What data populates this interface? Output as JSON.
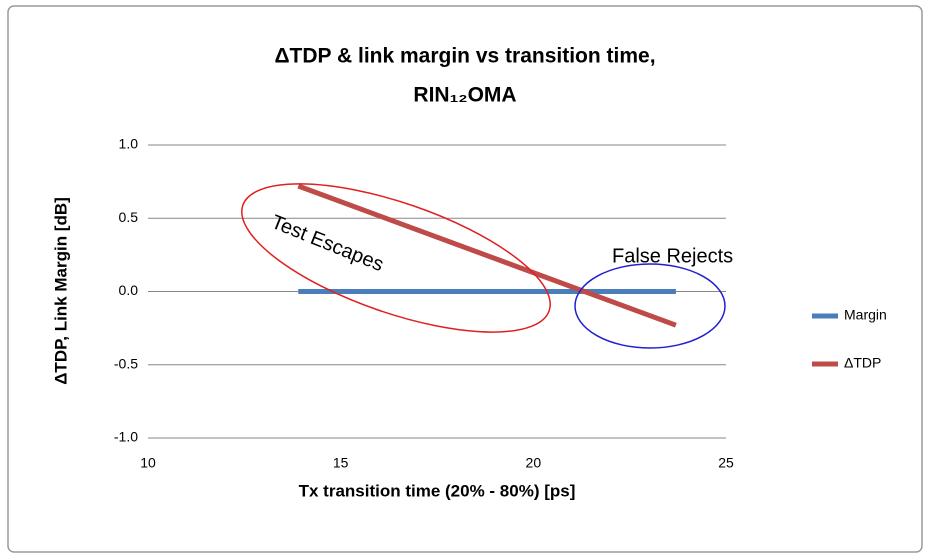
{
  "chart_data": {
    "type": "line",
    "title": [
      "ΔTDP & link margin vs transition time,",
      "RIN₁₂OMA"
    ],
    "x_label": "Tx transition time (20% - 80%) [ps]",
    "y_label": "ΔTDP, Link Margin [dB]",
    "x": [
      13.9,
      23.7
    ],
    "series": [
      {
        "name": "Margin",
        "color": "#4a7ebb",
        "values": [
          0,
          0
        ]
      },
      {
        "name": "ΔTDP",
        "color": "#be4b48",
        "values": [
          0.72,
          -0.23
        ]
      }
    ],
    "xlim": [
      10,
      25
    ],
    "xticks": [
      10,
      15,
      20,
      25
    ],
    "ylim": [
      -1,
      1
    ],
    "yticks": [
      {
        "value": -1,
        "label": "-1.0"
      },
      {
        "value": -0.5,
        "label": "-0.5"
      },
      {
        "value": 0,
        "label": "0.0"
      },
      {
        "value": 0.5,
        "label": "0.5"
      },
      {
        "value": 1,
        "label": "1.0"
      }
    ],
    "grid": true,
    "legend": "right",
    "annotations": [
      "Test Escapes",
      "False Rejects"
    ]
  }
}
